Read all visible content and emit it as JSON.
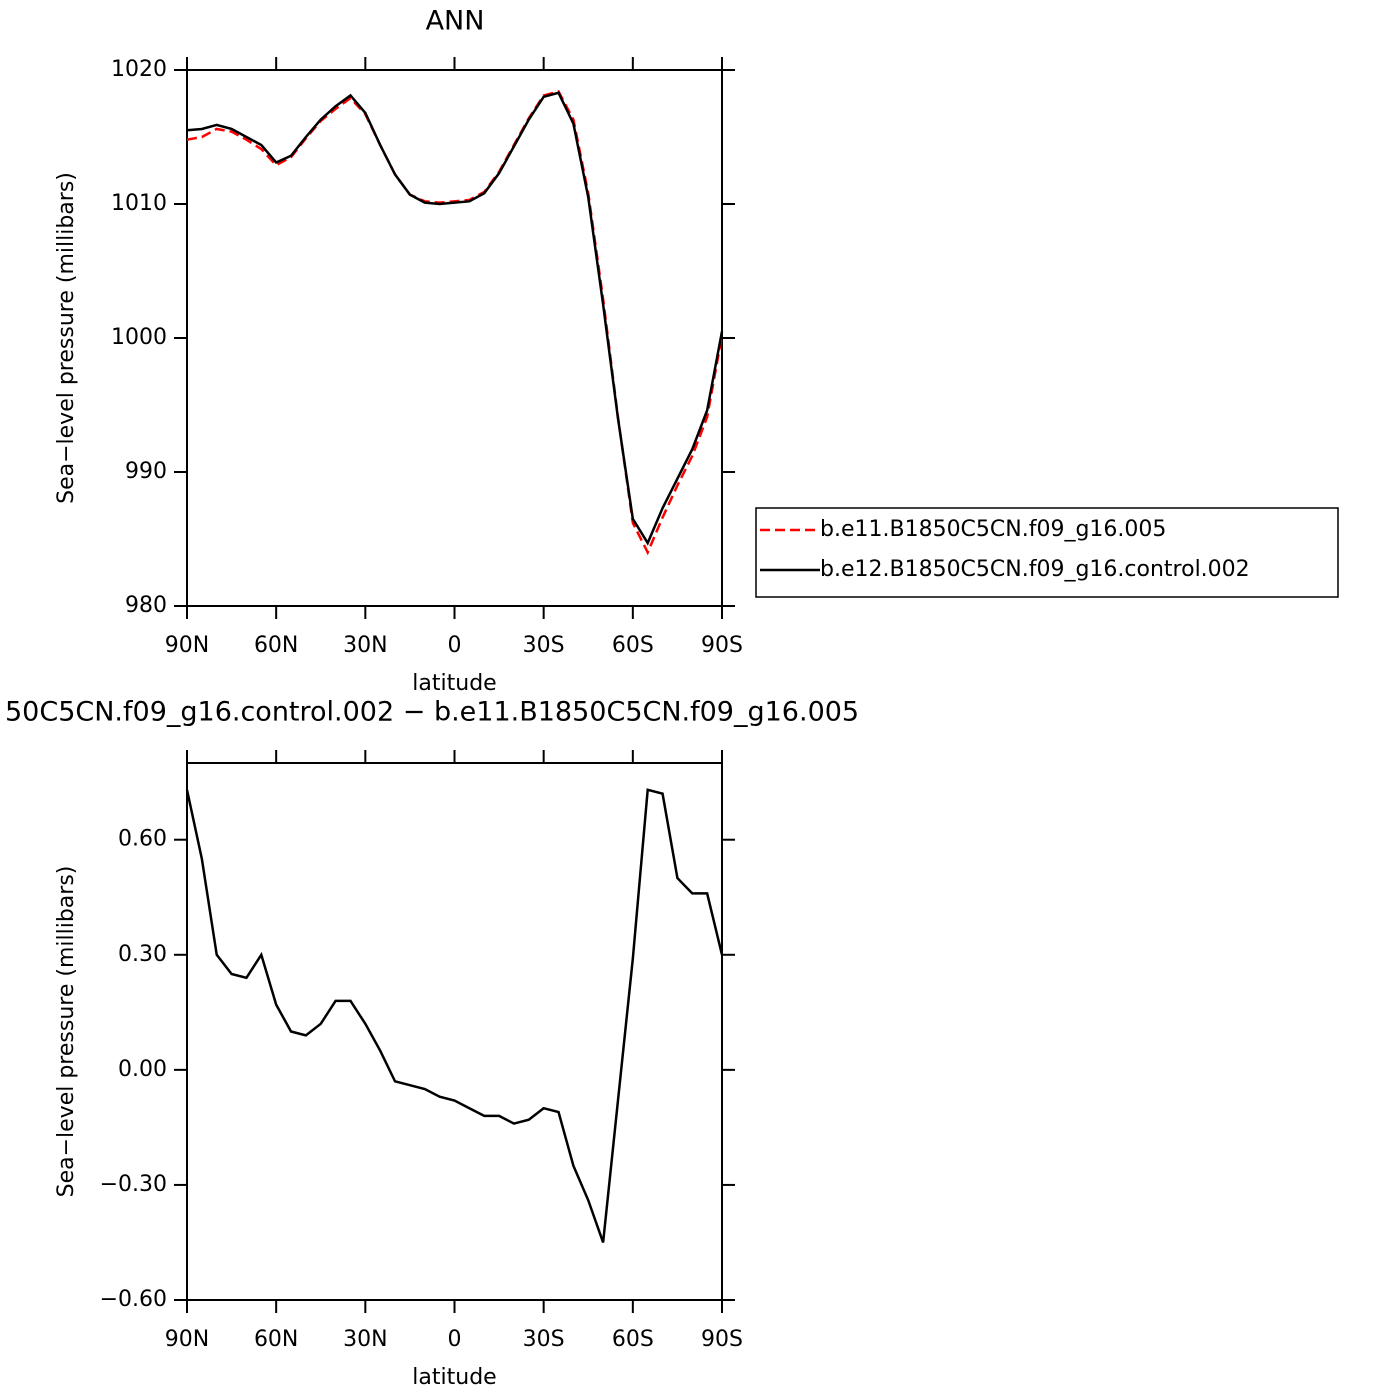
{
  "chart_data": [
    {
      "type": "line",
      "title": "ANN",
      "x_label": "latitude",
      "y_label": "Sea−level pressure (millibars)",
      "x": [
        90,
        85,
        80,
        75,
        70,
        65,
        60,
        55,
        50,
        45,
        40,
        35,
        30,
        25,
        20,
        15,
        10,
        5,
        0,
        -5,
        -10,
        -15,
        -20,
        -25,
        -30,
        -35,
        -40,
        -45,
        -50,
        -55,
        -60,
        -65,
        -70,
        -75,
        -80,
        -85,
        -90
      ],
      "series": [
        {
          "name": "b.e11.B1850C5CN.f09_g16.005",
          "color": "#ff0000",
          "dashed": true,
          "values": [
            1014.8,
            1015.0,
            1015.6,
            1015.4,
            1014.8,
            1014.1,
            1012.9,
            1013.5,
            1014.9,
            1016.2,
            1017.1,
            1017.9,
            1016.7,
            1014.4,
            1012.2,
            1010.7,
            1010.2,
            1010.1,
            1010.2,
            1010.3,
            1010.9,
            1012.4,
            1014.4,
            1016.4,
            1018.1,
            1018.4,
            1016.3,
            1010.8,
            1002.9,
            994.1,
            986.2,
            984.0,
            986.6,
            989.0,
            991.2,
            994.1,
            1000.2
          ]
        },
        {
          "name": "b.e12.B1850C5CN.f09_g16.control.002",
          "color": "#000000",
          "dashed": false,
          "values": [
            1015.5,
            1015.6,
            1015.9,
            1015.6,
            1015.0,
            1014.4,
            1013.1,
            1013.6,
            1015.0,
            1016.3,
            1017.3,
            1018.1,
            1016.8,
            1014.4,
            1012.2,
            1010.7,
            1010.1,
            1010.0,
            1010.1,
            1010.2,
            1010.8,
            1012.3,
            1014.3,
            1016.3,
            1018.0,
            1018.3,
            1016.0,
            1010.5,
            1002.5,
            994.0,
            986.5,
            984.7,
            987.3,
            989.5,
            991.7,
            994.6,
            1000.5
          ]
        }
      ],
      "xlim": [
        90,
        -90
      ],
      "xticks": [
        {
          "value": 90,
          "label": "90N"
        },
        {
          "value": 60,
          "label": "60N"
        },
        {
          "value": 30,
          "label": "30N"
        },
        0,
        {
          "value": -30,
          "label": "30S"
        },
        {
          "value": -60,
          "label": "60S"
        },
        {
          "value": -90,
          "label": "90S"
        }
      ],
      "ylim": [
        980,
        1020
      ],
      "yticks": [
        980,
        990,
        1000,
        1010,
        1020
      ],
      "legend": "right"
    },
    {
      "type": "line",
      "title": "50C5CN.f09_g16.control.002 − b.e11.B1850C5CN.f09_g16.005",
      "x_label": "latitude",
      "y_label": "Sea−level pressure (millibars)",
      "x": [
        90,
        85,
        80,
        75,
        70,
        65,
        60,
        55,
        50,
        45,
        40,
        35,
        30,
        25,
        20,
        15,
        10,
        5,
        0,
        -5,
        -10,
        -15,
        -20,
        -25,
        -30,
        -35,
        -40,
        -45,
        -50,
        -55,
        -60,
        -65,
        -70,
        -75,
        -80,
        -85,
        -90
      ],
      "color": "#000000",
      "values": [
        0.73,
        0.55,
        0.3,
        0.25,
        0.24,
        0.3,
        0.17,
        0.1,
        0.09,
        0.12,
        0.18,
        0.18,
        0.12,
        0.05,
        -0.03,
        -0.04,
        -0.05,
        -0.07,
        -0.08,
        -0.1,
        -0.12,
        -0.12,
        -0.14,
        -0.13,
        -0.1,
        -0.11,
        -0.25,
        -0.34,
        -0.45,
        -0.08,
        0.29,
        0.73,
        0.72,
        0.5,
        0.46,
        0.46,
        0.3
      ],
      "xlim": [
        90,
        -90
      ],
      "xticks": [
        {
          "value": 90,
          "label": "90N"
        },
        {
          "value": 60,
          "label": "60N"
        },
        {
          "value": 30,
          "label": "30N"
        },
        0,
        {
          "value": -30,
          "label": "30S"
        },
        {
          "value": -60,
          "label": "60S"
        },
        {
          "value": -90,
          "label": "90S"
        }
      ],
      "ylim": [
        -0.6,
        0.8
      ],
      "yticks": [
        {
          "value": -0.6,
          "label": "−0.60"
        },
        {
          "value": -0.3,
          "label": "−0.30"
        },
        {
          "value": 0,
          "label": "0.00"
        },
        {
          "value": 0.3,
          "label": "0.30"
        },
        {
          "value": 0.6,
          "label": "0.60"
        }
      ]
    }
  ]
}
